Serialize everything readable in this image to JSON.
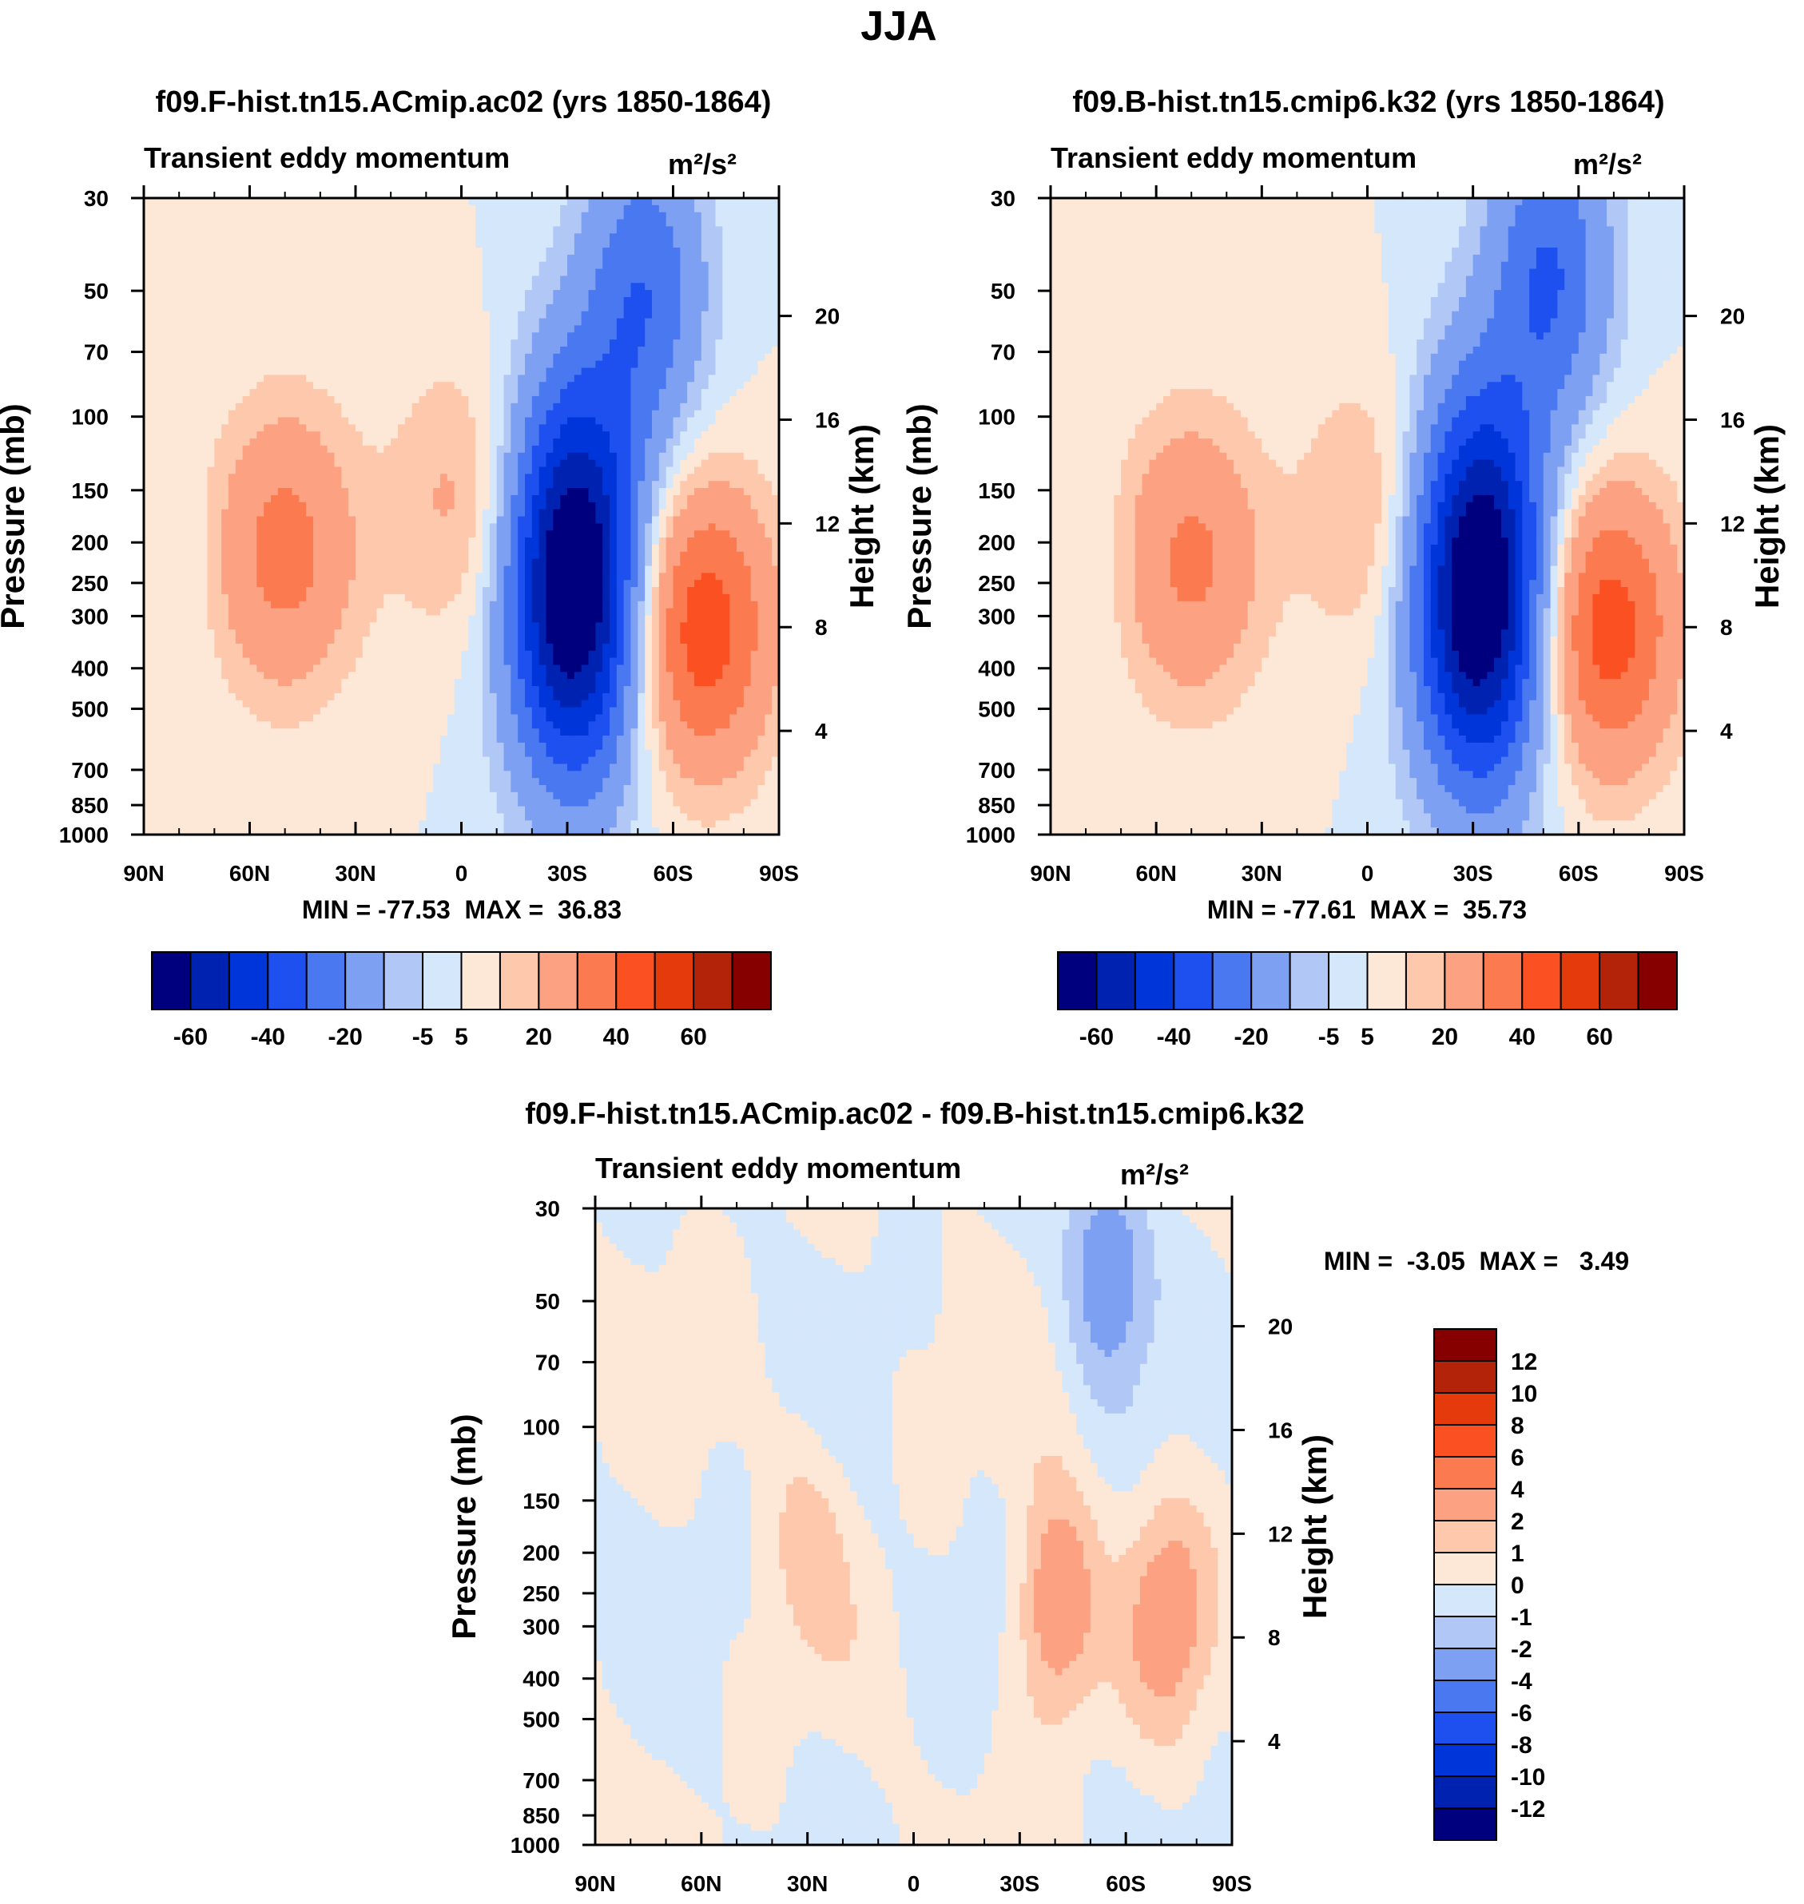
{
  "figure": {
    "title": "JJA"
  },
  "scales": {
    "main": {
      "colors": [
        "#00007f",
        "#0022b0",
        "#0035d9",
        "#1e50f0",
        "#4a78f0",
        "#7ea0f2",
        "#b1c8f7",
        "#d5e7fb",
        "#fde8d7",
        "#fdc8ac",
        "#fca283",
        "#fb7a50",
        "#fb5022",
        "#e43a0c",
        "#b32309",
        "#870000"
      ],
      "tick_labels": [
        "-60",
        "-40",
        "-20",
        "-5",
        "5",
        "20",
        "40",
        "60"
      ]
    },
    "diff": {
      "colors": [
        "#00007f",
        "#0022b0",
        "#0035d9",
        "#1e50f0",
        "#4a78f0",
        "#7ea0f2",
        "#b1c8f7",
        "#d5e7fb",
        "#fde8d7",
        "#fdc8ac",
        "#fca283",
        "#fb7a50",
        "#fb5022",
        "#e43a0c",
        "#b32309",
        "#870000"
      ],
      "labels_top_to_bottom": [
        "12",
        "10",
        "8",
        "6",
        "4",
        "2",
        "1",
        "0",
        "-1",
        "-2",
        "-4",
        "-6",
        "-8",
        "-10",
        "-12"
      ]
    }
  },
  "chart_data": [
    {
      "type": "heatmap",
      "id": "panel_a",
      "title": "f09.F-hist.tn15.ACmip.ac02 (yrs 1850-1864)",
      "subtitle_left": "Transient eddy momentum",
      "units": "m²/s²",
      "xlabel": "",
      "ylabel": "Pressure (mb)",
      "ylabel_right": "Height (km)",
      "x_ticklabels": [
        "90N",
        "60N",
        "30N",
        "0",
        "30S",
        "60S",
        "90S"
      ],
      "xlim": [
        90,
        -90
      ],
      "y_ticklabels": [
        "30",
        "50",
        "70",
        "100",
        "150",
        "200",
        "250",
        "300",
        "400",
        "500",
        "700",
        "850",
        "1000"
      ],
      "ylim_mb": [
        1000,
        30
      ],
      "height_ticklabels": [
        "20",
        "16",
        "12",
        "8",
        "4"
      ],
      "min_label": "MIN = -77.53",
      "max_label": "MAX =  36.83",
      "min": -77.53,
      "max": 36.83,
      "features": [
        {
          "lat": 75,
          "p": 220,
          "value": -2
        },
        {
          "lat": 50,
          "p": 210,
          "value": 24
        },
        {
          "lat": 0,
          "p": 160,
          "value": 12
        },
        {
          "lat": -32,
          "p": 250,
          "value": -77.53
        },
        {
          "lat": -52,
          "p": 50,
          "value": -28
        },
        {
          "lat": -68,
          "p": 320,
          "value": 36.83
        }
      ]
    },
    {
      "type": "heatmap",
      "id": "panel_b",
      "title": "f09.B-hist.tn15.cmip6.k32 (yrs 1850-1864)",
      "subtitle_left": "Transient eddy momentum",
      "units": "m²/s²",
      "xlabel": "",
      "ylabel": "Pressure (mb)",
      "ylabel_right": "Height (km)",
      "x_ticklabels": [
        "90N",
        "60N",
        "30N",
        "0",
        "30S",
        "60S",
        "90S"
      ],
      "xlim": [
        90,
        -90
      ],
      "y_ticklabels": [
        "30",
        "50",
        "70",
        "100",
        "150",
        "200",
        "250",
        "300",
        "400",
        "500",
        "700",
        "850",
        "1000"
      ],
      "ylim_mb": [
        1000,
        30
      ],
      "height_ticklabels": [
        "20",
        "16",
        "12",
        "8",
        "4"
      ],
      "min_label": "MIN = -77.61",
      "max_label": "MAX =  35.73",
      "min": -77.61,
      "max": 35.73,
      "features": [
        {
          "lat": 75,
          "p": 220,
          "value": -2
        },
        {
          "lat": 50,
          "p": 220,
          "value": 22
        },
        {
          "lat": 0,
          "p": 170,
          "value": 11
        },
        {
          "lat": -32,
          "p": 260,
          "value": -77.61
        },
        {
          "lat": -52,
          "p": 45,
          "value": -30
        },
        {
          "lat": -68,
          "p": 320,
          "value": 35.73
        }
      ]
    },
    {
      "type": "heatmap",
      "id": "panel_diff",
      "title": "f09.F-hist.tn15.ACmip.ac02 - f09.B-hist.tn15.cmip6.k32",
      "subtitle_left": "Transient eddy momentum",
      "units": "m²/s²",
      "xlabel": "",
      "ylabel": "Pressure (mb)",
      "ylabel_right": "Height (km)",
      "x_ticklabels": [
        "90N",
        "60N",
        "30N",
        "0",
        "30S",
        "60S",
        "90S"
      ],
      "xlim": [
        90,
        -90
      ],
      "y_ticklabels": [
        "30",
        "50",
        "70",
        "100",
        "150",
        "200",
        "250",
        "300",
        "400",
        "500",
        "700",
        "850",
        "1000"
      ],
      "ylim_mb": [
        1000,
        30
      ],
      "height_ticklabels": [
        "20",
        "16",
        "12",
        "8",
        "4"
      ],
      "min_label": "MIN =  -3.05",
      "max_label": "MAX =   3.49",
      "min": -3.05,
      "max": 3.49,
      "features": [
        {
          "lat": 30,
          "p": 180,
          "value": 1.2
        },
        {
          "lat": -40,
          "p": 270,
          "value": 3.49
        },
        {
          "lat": -72,
          "p": 280,
          "value": 2.6
        },
        {
          "lat": -55,
          "p": 40,
          "value": -3.05
        }
      ]
    }
  ]
}
